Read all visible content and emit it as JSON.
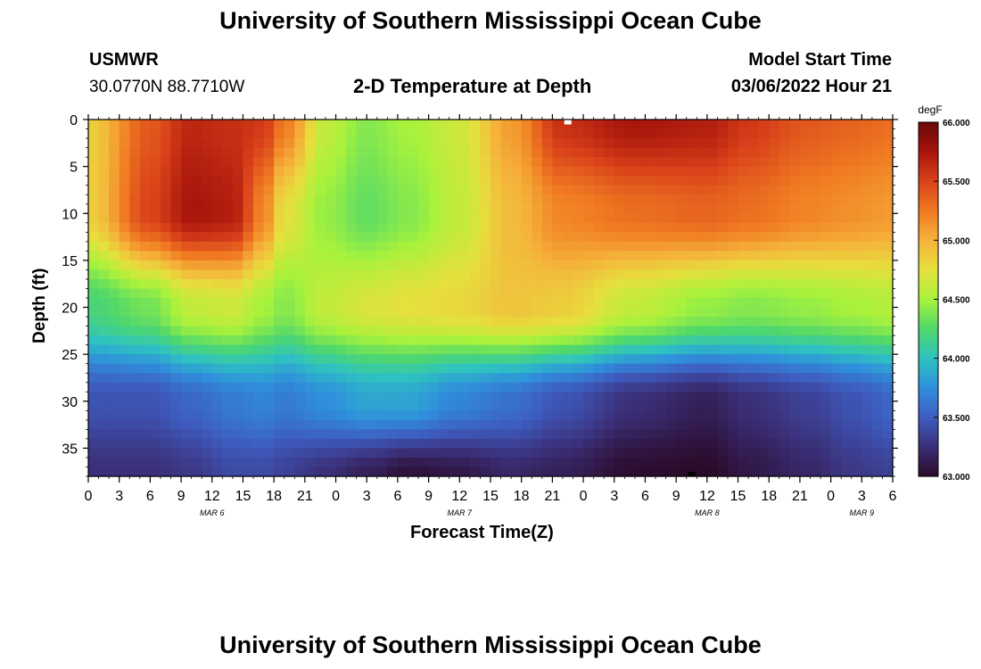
{
  "page": {
    "title_top": "University of Southern Mississippi Ocean Cube",
    "title_bottom": "University of Southern Mississippi Ocean Cube",
    "station_id": "USMWR",
    "coords": "30.0770N  88.7710W",
    "subtitle": "2-D Temperature at Depth",
    "model_start_label": "Model Start Time",
    "model_start_value": "03/06/2022 Hour 21"
  },
  "chart_data": {
    "type": "heatmap",
    "title": "2-D Temperature at Depth",
    "xlabel": "Forecast Time(Z)",
    "ylabel": "Depth (ft)",
    "x_range_hours": [
      0,
      78
    ],
    "x_start": "MAR 6 00Z",
    "x_ticks": [
      "0",
      "3",
      "6",
      "9",
      "12",
      "15",
      "18",
      "21",
      "0",
      "3",
      "6",
      "9",
      "12",
      "15",
      "18",
      "21",
      "0",
      "3",
      "6",
      "9",
      "12",
      "15",
      "18",
      "21",
      "0",
      "3",
      "6"
    ],
    "date_labels": [
      {
        "label": "MAR 6",
        "hour": 12
      },
      {
        "label": "MAR 7",
        "hour": 36
      },
      {
        "label": "MAR 8",
        "hour": 60
      },
      {
        "label": "MAR 9",
        "hour": 75
      }
    ],
    "y_range_ft": [
      0,
      38
    ],
    "y_ticks": [
      0,
      5,
      10,
      15,
      20,
      25,
      30,
      35
    ],
    "colorbar": {
      "unit": "degF",
      "min": 63.0,
      "max": 66.0,
      "ticks": [
        "66.000",
        "65.500",
        "65.000",
        "64.500",
        "64.000",
        "63.500",
        "63.000"
      ],
      "colors": [
        "#2a0a28",
        "#3b2f78",
        "#3e5cc0",
        "#2f8fdc",
        "#2ec3c0",
        "#50d86a",
        "#a8f23c",
        "#e6e03e",
        "#f5b23a",
        "#f07a22",
        "#d9421a",
        "#a8150c",
        "#6a0808"
      ]
    },
    "control_hours": [
      0,
      6,
      10,
      14,
      17,
      19,
      23,
      27,
      31,
      36,
      41,
      46,
      53,
      60,
      64,
      70,
      74,
      78
    ],
    "control_depths_ft": [
      0,
      10,
      20,
      30,
      38
    ],
    "temperature_degF": [
      [
        64.85,
        65.4,
        65.65,
        65.6,
        65.55,
        65.25,
        64.6,
        64.4,
        64.5,
        64.65,
        65.1,
        65.6,
        65.75,
        65.7,
        65.55,
        65.4,
        65.35,
        65.3
      ],
      [
        64.85,
        65.5,
        65.75,
        65.7,
        65.2,
        64.75,
        64.45,
        64.3,
        64.4,
        64.6,
        64.95,
        65.2,
        65.3,
        65.35,
        65.3,
        65.2,
        65.15,
        65.1
      ],
      [
        64.2,
        64.35,
        64.6,
        64.65,
        64.5,
        64.4,
        64.6,
        64.7,
        64.75,
        64.8,
        64.9,
        64.85,
        64.6,
        64.45,
        64.4,
        64.45,
        64.5,
        64.55
      ],
      [
        63.45,
        63.45,
        63.55,
        63.65,
        63.7,
        63.65,
        63.75,
        63.85,
        63.85,
        63.7,
        63.6,
        63.45,
        63.25,
        63.15,
        63.25,
        63.35,
        63.45,
        63.55
      ],
      [
        63.25,
        63.25,
        63.3,
        63.4,
        63.4,
        63.35,
        63.25,
        63.15,
        63.05,
        63.1,
        63.2,
        63.15,
        63.02,
        63.0,
        63.1,
        63.2,
        63.3,
        63.35
      ]
    ],
    "markers": [
      {
        "hour": 46.5,
        "depth_ft": 0,
        "color": "#ffffff"
      },
      {
        "hour": 58.5,
        "depth_ft": 38,
        "color": "#000000"
      }
    ]
  }
}
